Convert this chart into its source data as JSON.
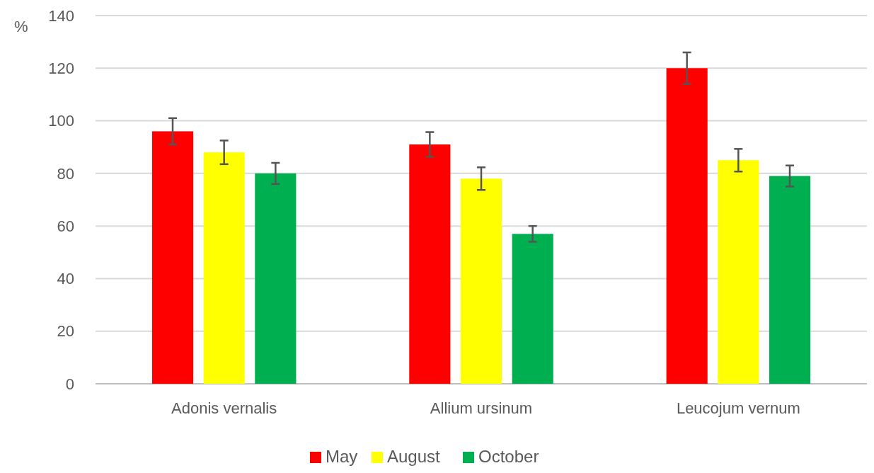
{
  "chart_data": {
    "type": "bar",
    "ylabel": "%",
    "categories": [
      "Adonis vernalis",
      "Allium ursinum",
      "Leucojum vernum"
    ],
    "series": [
      {
        "name": "May",
        "color": "#ff0000",
        "values": [
          96,
          91,
          120
        ],
        "errors": [
          5,
          4.7,
          6
        ]
      },
      {
        "name": "August",
        "color": "#ffff00",
        "values": [
          88,
          78,
          85
        ],
        "errors": [
          4.5,
          4.3,
          4.3
        ]
      },
      {
        "name": "October",
        "color": "#00b050",
        "values": [
          80,
          57,
          79
        ],
        "errors": [
          4,
          3,
          4
        ]
      }
    ],
    "ylim": [
      0,
      140
    ],
    "yticks": [
      0,
      20,
      40,
      60,
      80,
      100,
      120,
      140
    ],
    "grid": "y",
    "legend": "bottom"
  }
}
